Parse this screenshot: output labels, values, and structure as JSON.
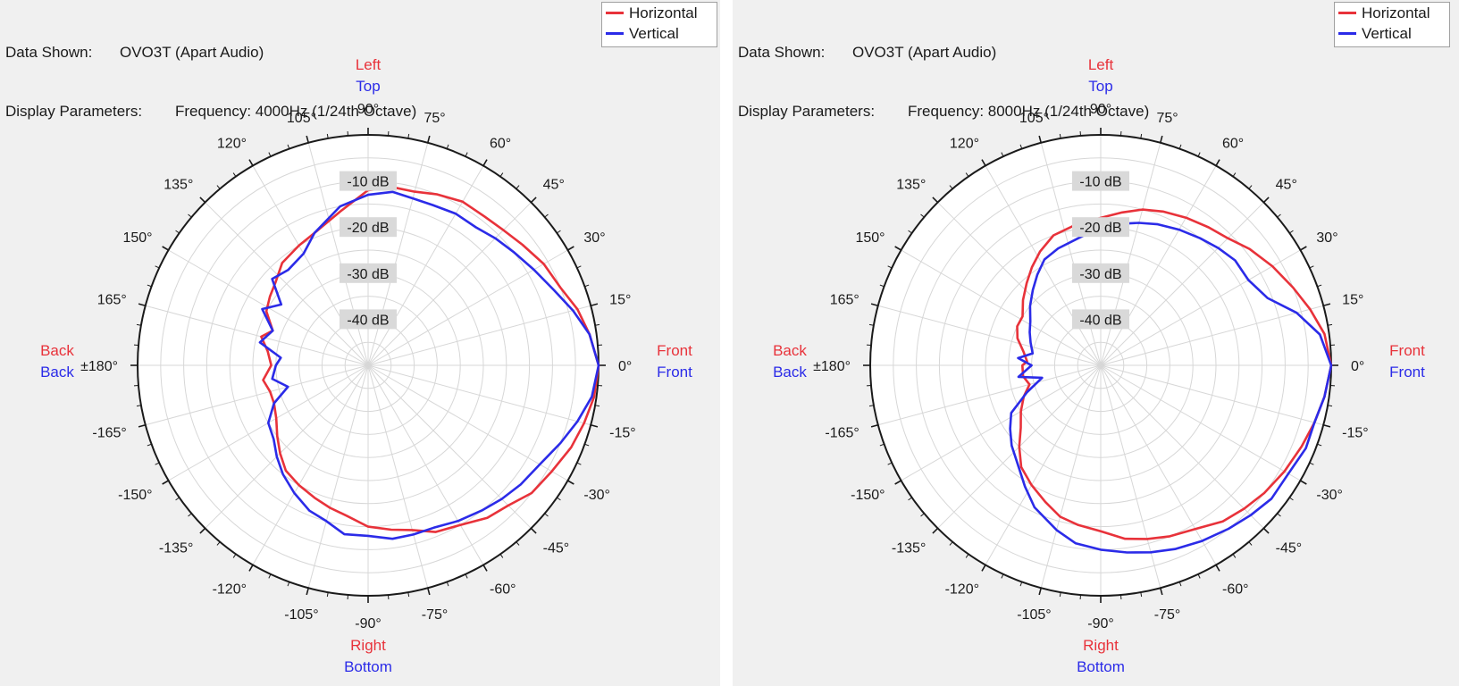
{
  "colors": {
    "horizontal": "#e8323a",
    "vertical": "#2b2be8",
    "grid": "#d7d7d7",
    "axis": "#1a1a1a"
  },
  "panels": [
    {
      "info_label1": "Data Shown:",
      "info_value1": "OVO3T (Apart Audio)",
      "info_label2": "Display Parameters:",
      "info_value2": "Frequency: 4000Hz (1/24th Octave)",
      "legend": {
        "h": "Horizontal",
        "v": "Vertical"
      },
      "dir": {
        "top_h": "Left",
        "top_v": "Top",
        "bottom_h": "Right",
        "bottom_v": "Bottom",
        "left_h": "Back",
        "left_v": "Back",
        "right_h": "Front",
        "right_v": "Front"
      },
      "angle_labels": [
        "0°",
        "15°",
        "30°",
        "45°",
        "60°",
        "75°",
        "90°",
        "105°",
        "120°",
        "135°",
        "150°",
        "165°",
        "±180°",
        "-165°",
        "-150°",
        "-135°",
        "-120°",
        "-105°",
        "-90°",
        "-75°",
        "-60°",
        "-45°",
        "-30°",
        "-15°"
      ],
      "db_labels": [
        "-10 dB",
        "-20 dB",
        "-30 dB",
        "-40 dB"
      ]
    },
    {
      "info_label1": "Data Shown:",
      "info_value1": "OVO3T (Apart Audio)",
      "info_label2": "Display Parameters:",
      "info_value2": "Frequency: 8000Hz (1/24th Octave)",
      "legend": {
        "h": "Horizontal",
        "v": "Vertical"
      },
      "dir": {
        "top_h": "Left",
        "top_v": "Top",
        "bottom_h": "Right",
        "bottom_v": "Bottom",
        "left_h": "Back",
        "left_v": "Back",
        "right_h": "Front",
        "right_v": "Front"
      },
      "angle_labels": [
        "0°",
        "15°",
        "30°",
        "45°",
        "60°",
        "75°",
        "90°",
        "105°",
        "120°",
        "135°",
        "150°",
        "165°",
        "±180°",
        "-165°",
        "-150°",
        "-135°",
        "-120°",
        "-105°",
        "-90°",
        "-75°",
        "-60°",
        "-45°",
        "-30°",
        "-15°"
      ],
      "db_labels": [
        "-10 dB",
        "-20 dB",
        "-30 dB",
        "-40 dB"
      ]
    }
  ],
  "chart_data": [
    {
      "type": "polar-line",
      "title": "Frequency: 4000Hz (1/24th Octave)",
      "r_axis": {
        "label": "dB",
        "min": -50,
        "max": 0,
        "ticks": [
          -10,
          -20,
          -30,
          -40
        ]
      },
      "theta_axis": {
        "unit": "deg",
        "step": 15,
        "range": [
          -180,
          180
        ]
      },
      "series": [
        {
          "name": "Horizontal",
          "points": [
            [
              0,
              0
            ],
            [
              8,
              -1.5
            ],
            [
              15,
              -3
            ],
            [
              22,
              -5
            ],
            [
              30,
              -6
            ],
            [
              38,
              -7.5
            ],
            [
              45,
              -8.5
            ],
            [
              52,
              -9
            ],
            [
              60,
              -9
            ],
            [
              68,
              -10
            ],
            [
              75,
              -11
            ],
            [
              82,
              -11
            ],
            [
              90,
              -12
            ],
            [
              100,
              -16
            ],
            [
              112,
              -19
            ],
            [
              120,
              -20
            ],
            [
              130,
              -21
            ],
            [
              138,
              -23
            ],
            [
              145,
              -24
            ],
            [
              152,
              -25
            ],
            [
              160,
              -28
            ],
            [
              165,
              -26
            ],
            [
              172,
              -28
            ],
            [
              180,
              -29
            ],
            [
              -172,
              -27
            ],
            [
              -165,
              -28
            ],
            [
              -158,
              -28
            ],
            [
              -150,
              -27
            ],
            [
              -142,
              -25
            ],
            [
              -135,
              -23
            ],
            [
              -128,
              -21
            ],
            [
              -120,
              -20
            ],
            [
              -112,
              -19
            ],
            [
              -105,
              -18
            ],
            [
              -98,
              -17
            ],
            [
              -90,
              -15
            ],
            [
              -82,
              -14
            ],
            [
              -75,
              -13
            ],
            [
              -68,
              -11
            ],
            [
              -60,
              -10
            ],
            [
              -52,
              -8
            ],
            [
              -45,
              -7
            ],
            [
              -38,
              -5
            ],
            [
              -30,
              -4
            ],
            [
              -22,
              -2.5
            ],
            [
              -15,
              -1.5
            ],
            [
              -8,
              -0.5
            ]
          ]
        },
        {
          "name": "Vertical",
          "points": [
            [
              0,
              0
            ],
            [
              8,
              -1.5
            ],
            [
              15,
              -4
            ],
            [
              22,
              -6.5
            ],
            [
              30,
              -8.5
            ],
            [
              38,
              -10
            ],
            [
              45,
              -11
            ],
            [
              52,
              -12
            ],
            [
              60,
              -12
            ],
            [
              68,
              -12.5
            ],
            [
              75,
              -12.5
            ],
            [
              82,
              -12
            ],
            [
              90,
              -13
            ],
            [
              100,
              -15
            ],
            [
              112,
              -19
            ],
            [
              120,
              -22
            ],
            [
              130,
              -23
            ],
            [
              138,
              -22
            ],
            [
              145,
              -27
            ],
            [
              152,
              -24
            ],
            [
              160,
              -28
            ],
            [
              168,
              -26
            ],
            [
              175,
              -31
            ],
            [
              180,
              -30
            ],
            [
              -172,
              -29
            ],
            [
              -165,
              -32
            ],
            [
              -158,
              -28
            ],
            [
              -150,
              -25
            ],
            [
              -142,
              -24
            ],
            [
              -135,
              -22
            ],
            [
              -128,
              -20
            ],
            [
              -120,
              -18
            ],
            [
              -112,
              -16
            ],
            [
              -105,
              -15
            ],
            [
              -98,
              -13
            ],
            [
              -90,
              -13
            ],
            [
              -82,
              -12
            ],
            [
              -75,
              -12
            ],
            [
              -68,
              -12
            ],
            [
              -60,
              -11
            ],
            [
              -52,
              -10
            ],
            [
              -45,
              -9
            ],
            [
              -38,
              -8
            ],
            [
              -30,
              -7
            ],
            [
              -22,
              -5
            ],
            [
              -15,
              -3
            ],
            [
              -8,
              -1
            ]
          ]
        }
      ]
    },
    {
      "type": "polar-line",
      "title": "Frequency: 8000Hz (1/24th Octave)",
      "r_axis": {
        "label": "dB",
        "min": -50,
        "max": 0,
        "ticks": [
          -10,
          -20,
          -30,
          -40
        ]
      },
      "theta_axis": {
        "unit": "deg",
        "step": 15,
        "range": [
          -180,
          180
        ]
      },
      "series": [
        {
          "name": "Horizontal",
          "points": [
            [
              0,
              0
            ],
            [
              8,
              -1
            ],
            [
              15,
              -3
            ],
            [
              22,
              -5
            ],
            [
              30,
              -7
            ],
            [
              38,
              -9
            ],
            [
              45,
              -11
            ],
            [
              52,
              -12
            ],
            [
              60,
              -13
            ],
            [
              68,
              -14
            ],
            [
              75,
              -15
            ],
            [
              82,
              -16.5
            ],
            [
              90,
              -18
            ],
            [
              100,
              -19
            ],
            [
              110,
              -20
            ],
            [
              118,
              -22
            ],
            [
              125,
              -24
            ],
            [
              132,
              -26
            ],
            [
              140,
              -28
            ],
            [
              148,
              -30
            ],
            [
              155,
              -30
            ],
            [
              162,
              -31
            ],
            [
              170,
              -33
            ],
            [
              177,
              -34
            ],
            [
              180,
              -33
            ],
            [
              -172,
              -33
            ],
            [
              -165,
              -34
            ],
            [
              -158,
              -32
            ],
            [
              -150,
              -30
            ],
            [
              -142,
              -28
            ],
            [
              -135,
              -25
            ],
            [
              -128,
              -22
            ],
            [
              -120,
              -20
            ],
            [
              -112,
              -18
            ],
            [
              -105,
              -16
            ],
            [
              -98,
              -15
            ],
            [
              -90,
              -14
            ],
            [
              -82,
              -12
            ],
            [
              -75,
              -11
            ],
            [
              -68,
              -10
            ],
            [
              -60,
              -9
            ],
            [
              -52,
              -7
            ],
            [
              -45,
              -6
            ],
            [
              -38,
              -5
            ],
            [
              -30,
              -4
            ],
            [
              -22,
              -3
            ],
            [
              -15,
              -2
            ],
            [
              -8,
              -1
            ]
          ]
        },
        {
          "name": "Vertical",
          "points": [
            [
              0,
              0
            ],
            [
              8,
              -2
            ],
            [
              15,
              -6
            ],
            [
              22,
              -11
            ],
            [
              30,
              -13
            ],
            [
              38,
              -13
            ],
            [
              45,
              -14
            ],
            [
              52,
              -15
            ],
            [
              60,
              -16
            ],
            [
              68,
              -17
            ],
            [
              75,
              -18
            ],
            [
              82,
              -19
            ],
            [
              90,
              -20
            ],
            [
              100,
              -22
            ],
            [
              110,
              -23
            ],
            [
              118,
              -24
            ],
            [
              125,
              -26
            ],
            [
              132,
              -28
            ],
            [
              140,
              -30
            ],
            [
              148,
              -32
            ],
            [
              155,
              -33
            ],
            [
              162,
              -34
            ],
            [
              170,
              -35
            ],
            [
              175,
              -32
            ],
            [
              180,
              -35
            ],
            [
              -172,
              -32
            ],
            [
              -168,
              -37
            ],
            [
              -160,
              -33
            ],
            [
              -152,
              -28
            ],
            [
              -145,
              -26
            ],
            [
              -138,
              -24
            ],
            [
              -130,
              -22
            ],
            [
              -122,
              -19
            ],
            [
              -115,
              -16
            ],
            [
              -105,
              -13
            ],
            [
              -98,
              -11
            ],
            [
              -90,
              -10
            ],
            [
              -82,
              -9
            ],
            [
              -75,
              -8
            ],
            [
              -68,
              -7
            ],
            [
              -60,
              -6
            ],
            [
              -52,
              -5
            ],
            [
              -45,
              -4
            ],
            [
              -38,
              -3
            ],
            [
              -30,
              -3
            ],
            [
              -22,
              -2
            ],
            [
              -15,
              -2
            ],
            [
              -8,
              -1
            ]
          ]
        }
      ]
    }
  ]
}
